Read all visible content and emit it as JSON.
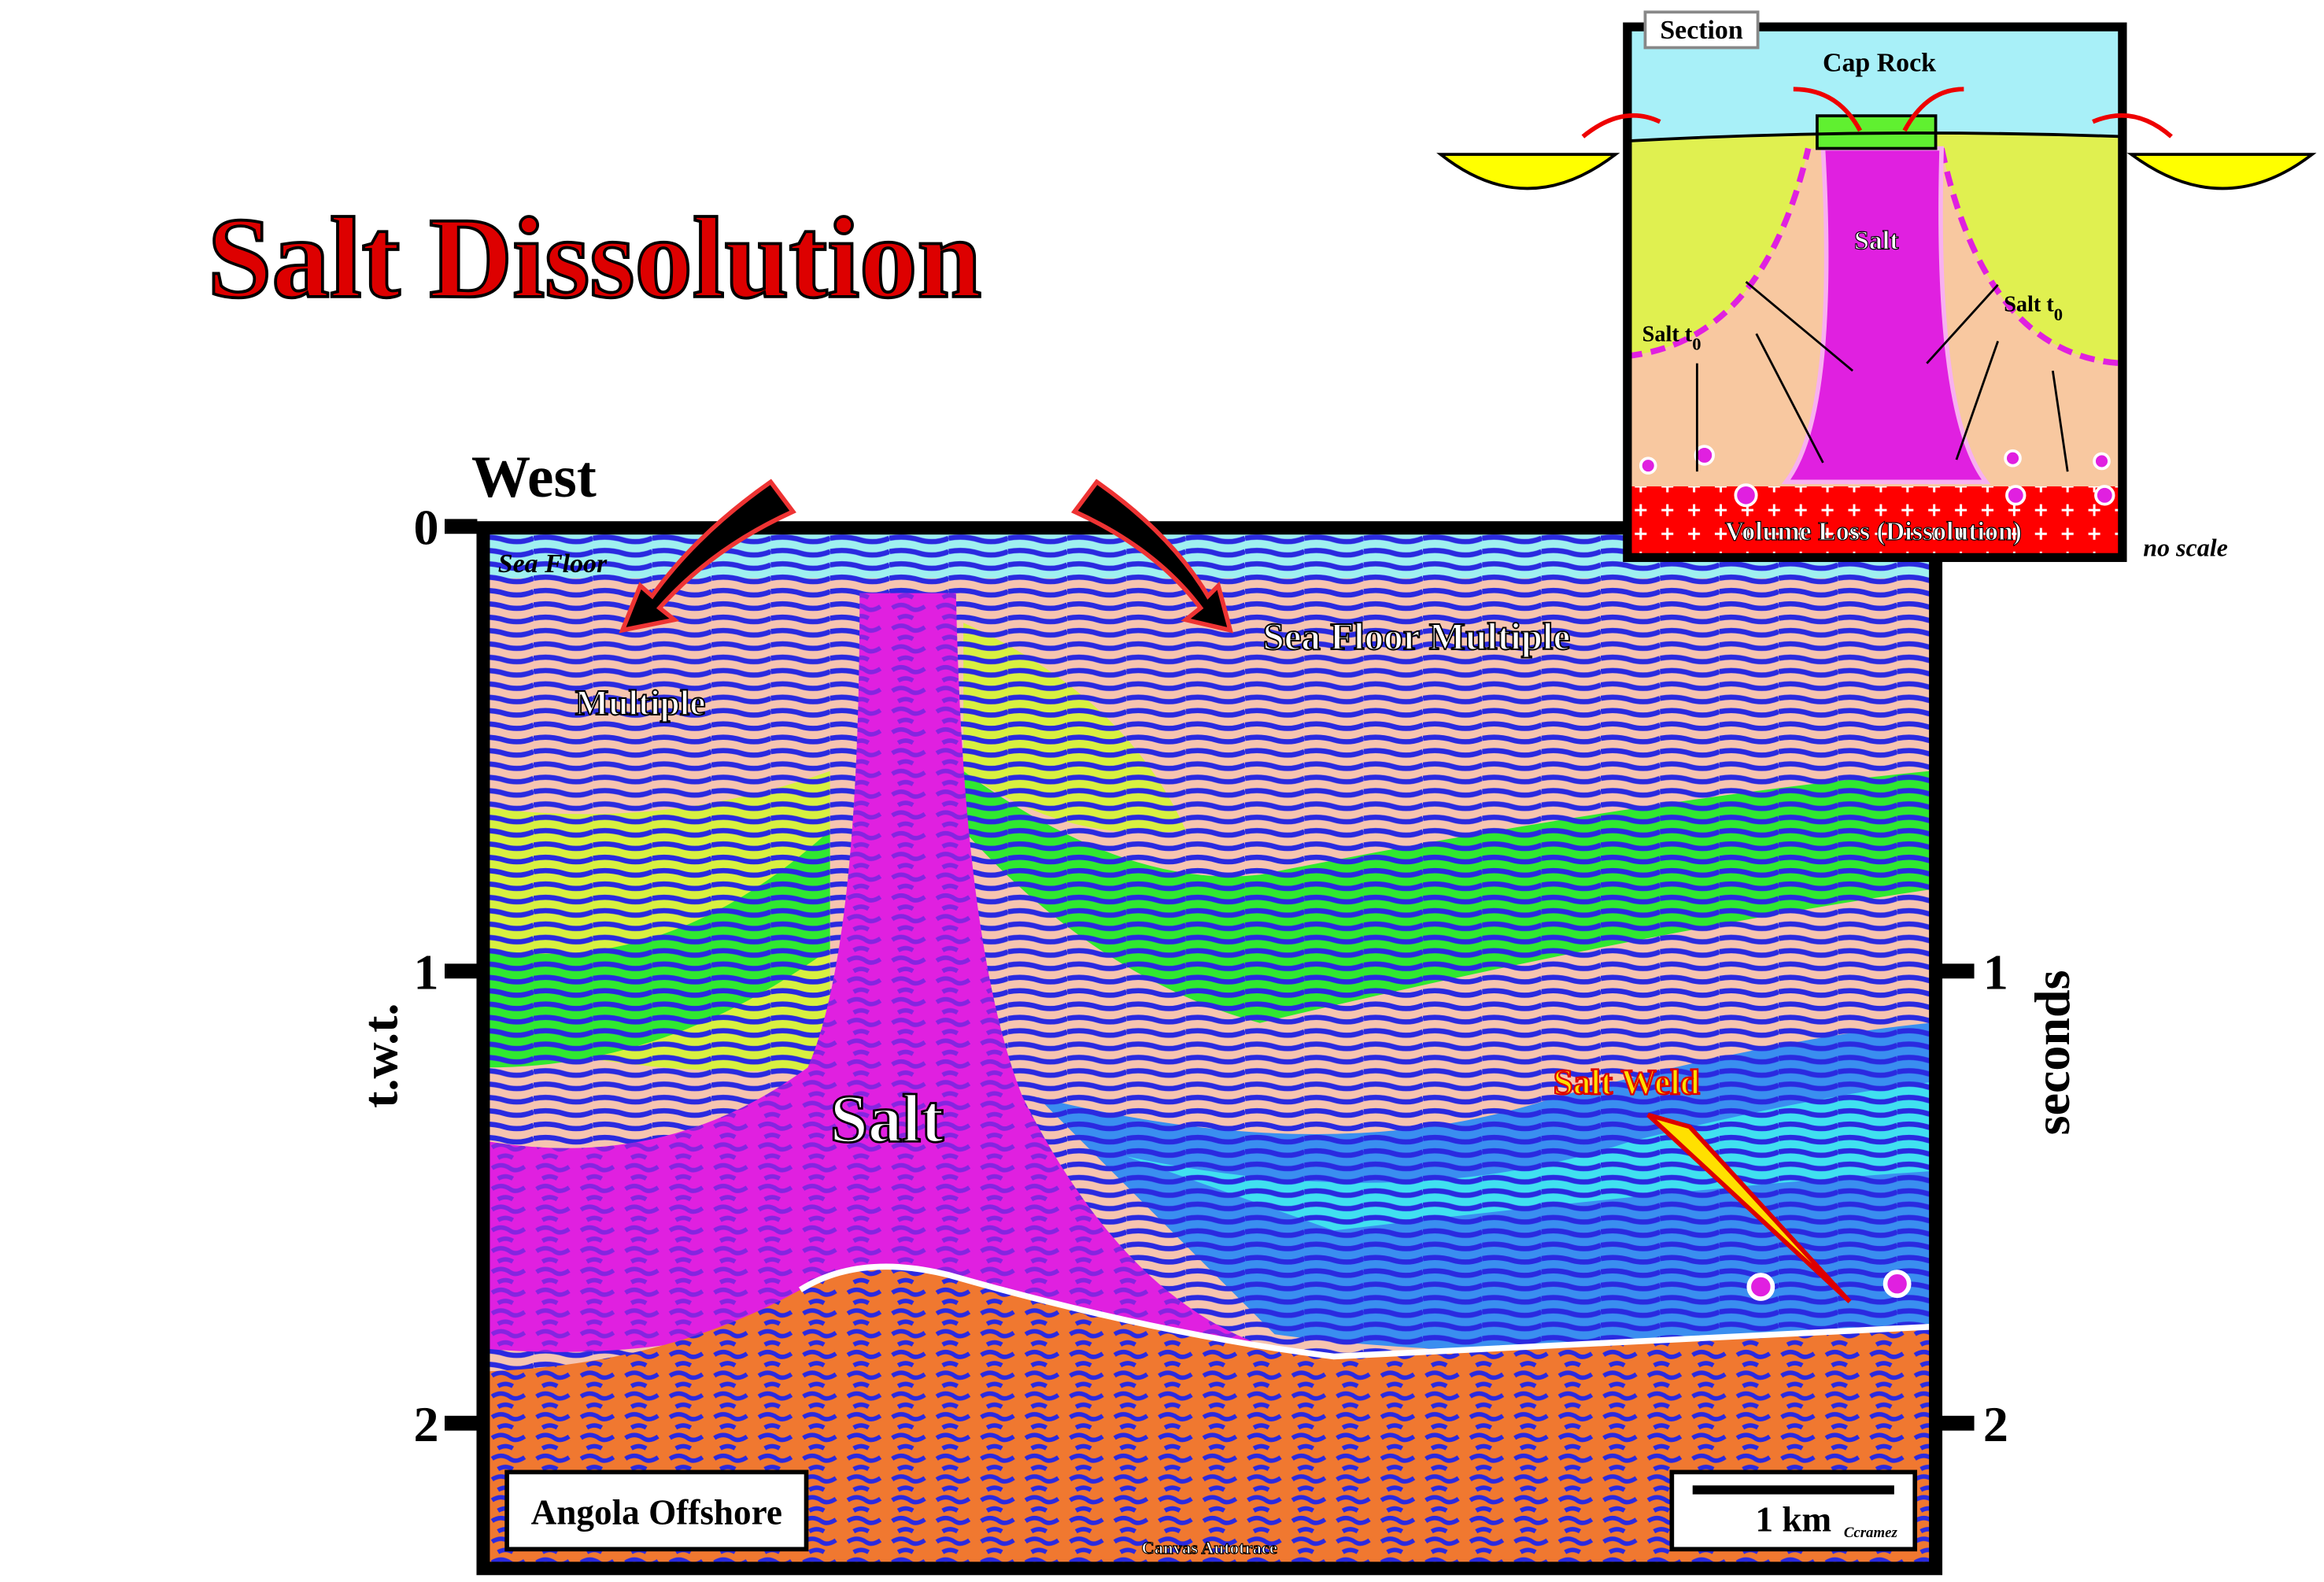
{
  "title": "Salt Dissolution",
  "section": {
    "direction": "West",
    "left_axis": {
      "label": "t.w.t.",
      "ticks": [
        "0",
        "1",
        "2"
      ]
    },
    "right_axis": {
      "label": "seconds",
      "ticks": [
        "1",
        "2"
      ]
    },
    "labels": {
      "sea_floor": "Sea Floor",
      "multiple": "Multiple",
      "sea_floor_multiple": "Sea Floor Multiple",
      "salt": "Salt",
      "salt_weld": "Salt Weld"
    },
    "location": "Angola Offshore",
    "scale": "1 km",
    "author": "Ccramez",
    "credit": "Canvas Autotrace"
  },
  "inset": {
    "title": "Section",
    "cap_rock": "Cap Rock",
    "salt": "Salt",
    "salt_t0_left": {
      "text": "Salt t",
      "sub": "0"
    },
    "salt_t0_right": {
      "text": "Salt t",
      "sub": "0"
    },
    "volume_loss": "Volume Loss (Dissolution)",
    "no_scale": "no scale"
  }
}
